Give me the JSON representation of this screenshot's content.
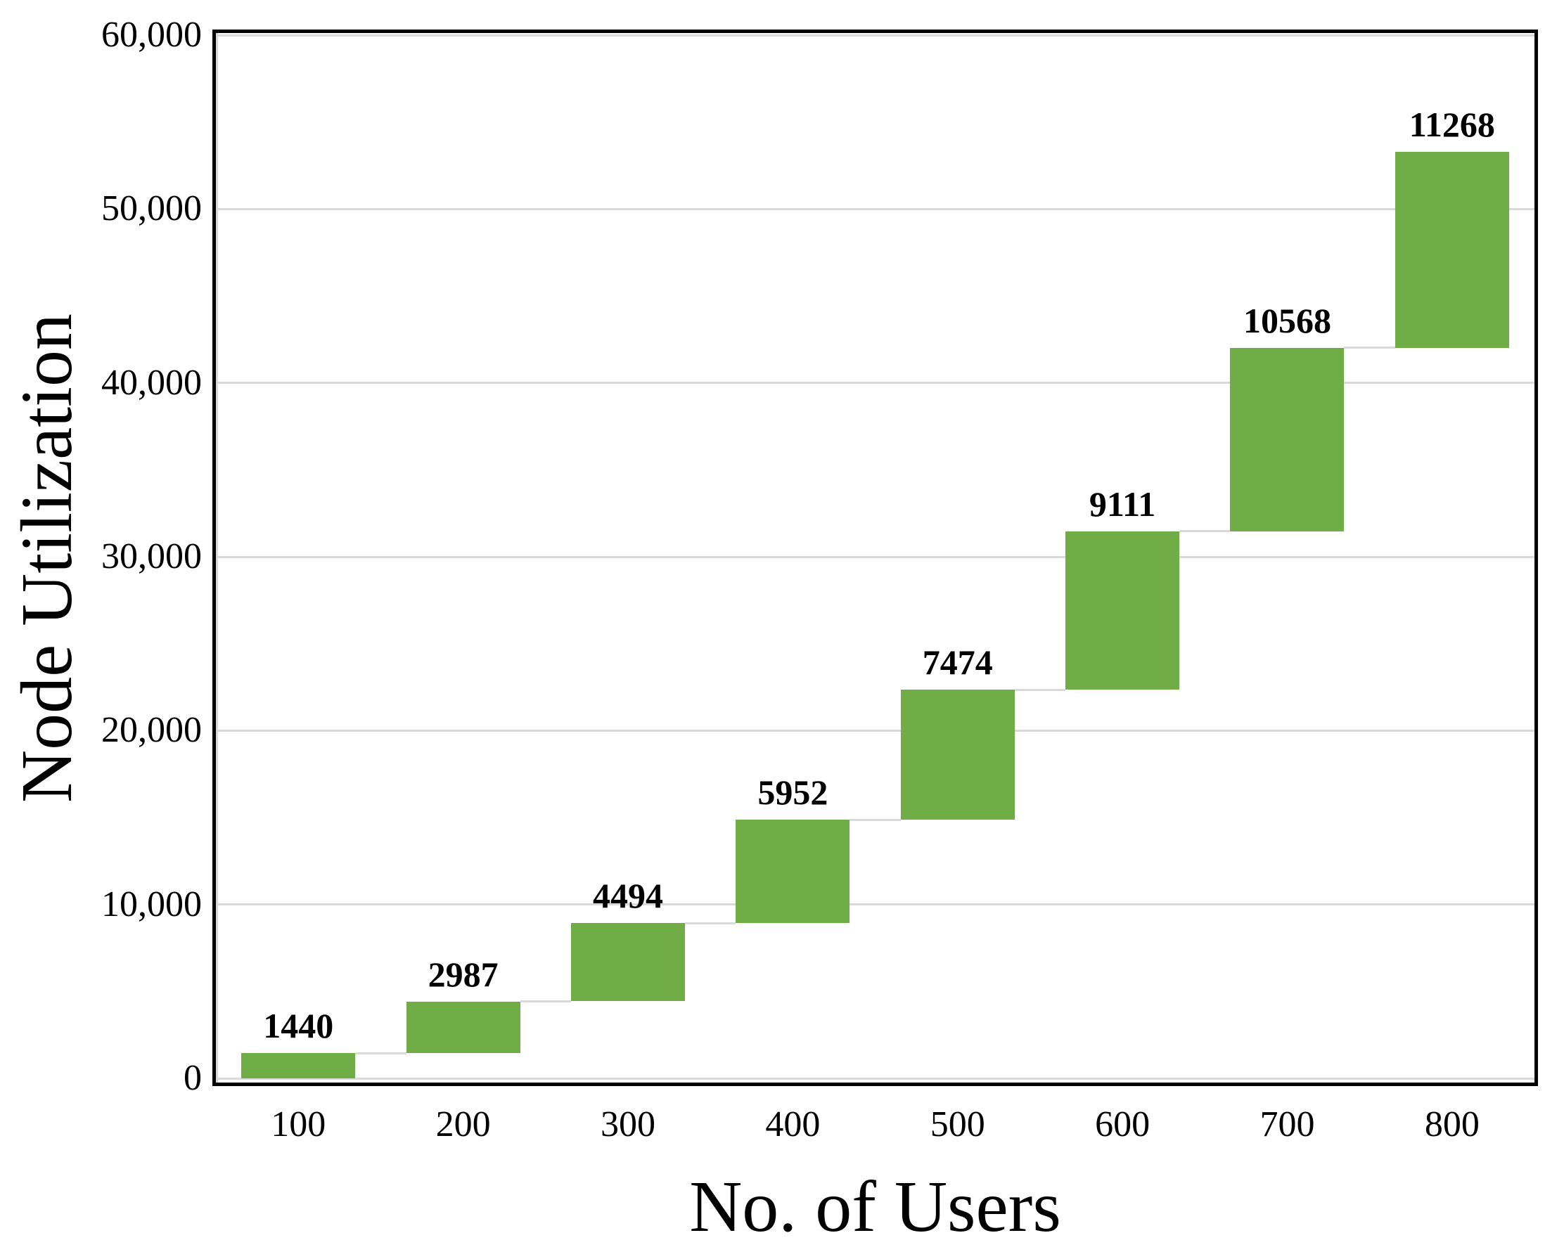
{
  "chart_data": {
    "type": "bar",
    "variant": "waterfall",
    "title": "",
    "xlabel": "No. of Users",
    "ylabel": "Node Utilization",
    "categories": [
      "100",
      "200",
      "300",
      "400",
      "500",
      "600",
      "700",
      "800"
    ],
    "values": [
      1440,
      2987,
      4494,
      5952,
      7474,
      9111,
      10568,
      11268
    ],
    "cumulative_start": [
      0,
      1440,
      4427,
      8921,
      14873,
      22347,
      31458,
      42026
    ],
    "cumulative_end": [
      1440,
      4427,
      8921,
      14873,
      22347,
      31458,
      42026,
      53294
    ],
    "bar_labels": [
      "1440",
      "2987",
      "4494",
      "5952",
      "7474",
      "9111",
      "10568",
      "11268"
    ],
    "ylim": [
      0,
      60000
    ],
    "yticks": [
      {
        "value": 0,
        "label": "0"
      },
      {
        "value": 10000,
        "label": "10,000"
      },
      {
        "value": 20000,
        "label": "20,000"
      },
      {
        "value": 30000,
        "label": "30,000"
      },
      {
        "value": 40000,
        "label": "40,000"
      },
      {
        "value": 50000,
        "label": "50,000"
      },
      {
        "value": 60000,
        "label": "60,000"
      }
    ],
    "grid": true,
    "legend": "none",
    "bar_color": "#70ad47",
    "gridline_color": "#d9d9d9",
    "connector_color": "#d9d9d9",
    "axis_border_color": "#000000",
    "label_color": "#000000"
  }
}
